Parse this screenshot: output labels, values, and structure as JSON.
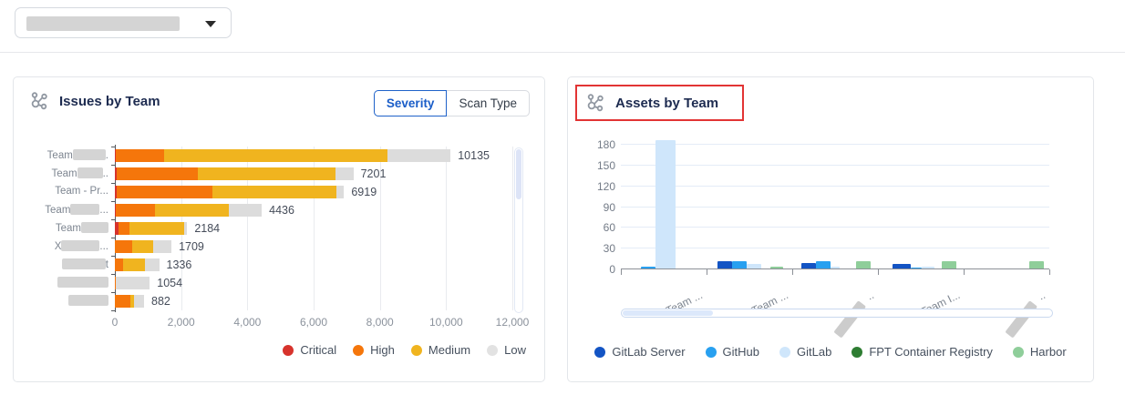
{
  "topbar": {
    "dropdown": {
      "value_redacted": true,
      "caret_icon": "caret-down"
    }
  },
  "issues_card": {
    "title": "Issues by Team",
    "hub_icon": "team-cluster-icon",
    "toggle": {
      "options": [
        "Severity",
        "Scan Type"
      ],
      "selected": "Severity"
    },
    "x_ticks": [
      "0",
      "2,000",
      "4,000",
      "6,000",
      "8,000",
      "10,000",
      "12,000"
    ],
    "x_max": 12000,
    "severity_colors": {
      "critical": "#d7332c",
      "high": "#f5760b",
      "medium": "#f0b41f",
      "low": "#dcdcdc"
    },
    "legend": [
      {
        "key": "critical",
        "label": "Critical",
        "color": "#d7332c"
      },
      {
        "key": "high",
        "label": "High",
        "color": "#f5760b"
      },
      {
        "key": "medium",
        "label": "Medium",
        "color": "#f0b41f"
      },
      {
        "key": "low",
        "label": "Low",
        "color": "#e2e2e2"
      }
    ],
    "rows": [
      {
        "label": [
          {
            "t": "Team"
          },
          {
            "r": 36
          },
          {
            "t": "."
          }
        ],
        "total": "10135",
        "values": {
          "critical": 40,
          "high": 1450,
          "medium": 6730,
          "low": 1915
        }
      },
      {
        "label": [
          {
            "t": "Team"
          },
          {
            "r": 28
          },
          {
            "t": ".."
          }
        ],
        "total": "7201",
        "values": {
          "critical": 50,
          "high": 2450,
          "medium": 4170,
          "low": 531
        }
      },
      {
        "label": [
          {
            "t": "Team - Pr..."
          }
        ],
        "total": "6919",
        "values": {
          "critical": 60,
          "high": 2880,
          "medium": 3760,
          "low": 219
        }
      },
      {
        "label": [
          {
            "t": "Team"
          },
          {
            "r": 32
          },
          {
            "t": "..."
          }
        ],
        "total": "4436",
        "values": {
          "critical": 30,
          "high": 1180,
          "medium": 2230,
          "low": 996
        }
      },
      {
        "label": [
          {
            "t": "Team"
          },
          {
            "r": 30
          }
        ],
        "total": "2184",
        "values": {
          "critical": 120,
          "high": 320,
          "medium": 1650,
          "low": 94
        }
      },
      {
        "label": [
          {
            "t": "X"
          },
          {
            "r": 42
          },
          {
            "t": "..."
          }
        ],
        "total": "1709",
        "values": {
          "critical": 0,
          "high": 510,
          "medium": 640,
          "low": 559
        }
      },
      {
        "label": [
          {
            "r": 48
          },
          {
            "t": "t"
          }
        ],
        "total": "1336",
        "values": {
          "critical": 0,
          "high": 250,
          "medium": 650,
          "low": 436
        }
      },
      {
        "label": [
          {
            "r": 56
          }
        ],
        "total": "1054",
        "values": {
          "critical": 0,
          "high": 30,
          "medium": 0,
          "low": 1024
        }
      },
      {
        "label": [
          {
            "r": 44
          }
        ],
        "total": "882",
        "values": {
          "critical": 0,
          "high": 460,
          "medium": 120,
          "low": 302
        }
      }
    ]
  },
  "assets_card": {
    "title": "Assets by Team",
    "hub_icon": "team-cluster-icon",
    "annotation": {
      "type": "red-highlight-box",
      "color": "#e23434"
    },
    "y_ticks": [
      "0",
      "30",
      "60",
      "90",
      "120",
      "150",
      "180"
    ],
    "y_max": 180,
    "series_colors": {
      "server": "#1354c4",
      "github": "#28a0f0",
      "gitlab": "#cfe6fb",
      "fpt": "#2e7d32",
      "harbor": "#8fce9a"
    },
    "legend": [
      {
        "key": "server",
        "label": "GitLab Server",
        "color": "#1354c4"
      },
      {
        "key": "github",
        "label": "GitHub",
        "color": "#28a0f0"
      },
      {
        "key": "gitlab",
        "label": "GitLab",
        "color": "#cfe6fb"
      },
      {
        "key": "fpt",
        "label": "FPT Container Registry",
        "color": "#2e7d32"
      },
      {
        "key": "harbor",
        "label": "Harbor",
        "color": "#8fce9a"
      }
    ],
    "groups": [
      {
        "label": [
          {
            "t": "Team ..."
          }
        ],
        "bars": [
          {
            "k": "github",
            "v": 2,
            "w": 16,
            "ml": 22
          },
          {
            "k": "gitlab",
            "v": 185,
            "w": 22,
            "ml": 0
          }
        ]
      },
      {
        "label": [
          {
            "t": "Team ..."
          }
        ],
        "bars": [
          {
            "k": "server",
            "v": 11,
            "w": 16,
            "ml": 12
          },
          {
            "k": "github",
            "v": 11,
            "w": 16,
            "ml": 0
          },
          {
            "k": "gitlab",
            "v": 7,
            "w": 16,
            "ml": 0
          },
          {
            "k": "harbor",
            "v": 2,
            "w": 14,
            "ml": 10
          }
        ]
      },
      {
        "label": [
          {
            "r": 44
          },
          {
            "t": ".."
          }
        ],
        "bars": [
          {
            "k": "server",
            "v": 8,
            "w": 16,
            "ml": 10
          },
          {
            "k": "github",
            "v": 10,
            "w": 16,
            "ml": 0
          },
          {
            "k": "gitlab",
            "v": 2,
            "w": 10,
            "ml": 0
          },
          {
            "k": "harbor",
            "v": 10,
            "w": 16,
            "ml": 18
          }
        ]
      },
      {
        "label": [
          {
            "t": "Team I..."
          }
        ],
        "bars": [
          {
            "k": "server",
            "v": 7,
            "w": 20,
            "ml": 16
          },
          {
            "k": "github",
            "v": 1,
            "w": 12,
            "ml": 0
          },
          {
            "k": "gitlab",
            "v": 2,
            "w": 14,
            "ml": 0
          },
          {
            "k": "harbor",
            "v": 10,
            "w": 16,
            "ml": 8
          }
        ]
      },
      {
        "label": [
          {
            "r": 44
          },
          {
            "t": ".."
          }
        ],
        "bars": [
          {
            "k": "harbor",
            "v": 11,
            "w": 16,
            "ml": 72
          }
        ]
      }
    ]
  },
  "chart_data": [
    {
      "type": "bar",
      "orientation": "horizontal",
      "stacked": true,
      "title": "Issues by Team",
      "categories": [
        "Team … .",
        "Team … ..",
        "Team - Pr...",
        "Team … ...",
        "Team …",
        "X… ...",
        "…t",
        "…",
        "…"
      ],
      "series": [
        {
          "name": "Critical",
          "values": [
            40,
            50,
            60,
            30,
            120,
            0,
            0,
            0,
            0
          ]
        },
        {
          "name": "High",
          "values": [
            1450,
            2450,
            2880,
            1180,
            320,
            510,
            250,
            30,
            460
          ]
        },
        {
          "name": "Medium",
          "values": [
            6730,
            4170,
            3760,
            2230,
            1650,
            640,
            650,
            0,
            120
          ]
        },
        {
          "name": "Low",
          "values": [
            1915,
            531,
            219,
            996,
            94,
            559,
            436,
            1024,
            302
          ]
        }
      ],
      "totals": [
        10135,
        7201,
        6919,
        4436,
        2184,
        1709,
        1336,
        1054,
        882
      ],
      "xlim": [
        0,
        12000
      ],
      "x_tick_labels": [
        "0",
        "2,000",
        "4,000",
        "6,000",
        "8,000",
        "10,000",
        "12,000"
      ],
      "legend_position": "bottom-right",
      "grid": true
    },
    {
      "type": "bar",
      "orientation": "vertical",
      "grouped": true,
      "title": "Assets by Team",
      "categories": [
        "Team …",
        "Team …",
        "…",
        "Team I…",
        "…"
      ],
      "series": [
        {
          "name": "GitLab Server",
          "values": [
            0,
            11,
            8,
            7,
            0
          ]
        },
        {
          "name": "GitHub",
          "values": [
            2,
            11,
            10,
            1,
            0
          ]
        },
        {
          "name": "GitLab",
          "values": [
            185,
            7,
            2,
            2,
            0
          ]
        },
        {
          "name": "FPT Container Registry",
          "values": [
            0,
            0,
            0,
            0,
            0
          ]
        },
        {
          "name": "Harbor",
          "values": [
            0,
            2,
            10,
            10,
            11
          ]
        }
      ],
      "ylim": [
        0,
        180
      ],
      "y_tick_labels": [
        "0",
        "30",
        "60",
        "90",
        "120",
        "150",
        "180"
      ],
      "legend_position": "bottom-center",
      "grid": true,
      "note": "first-group GitLab bar exceeds top of axis (~185, clipped at 180 gridline)"
    }
  ]
}
